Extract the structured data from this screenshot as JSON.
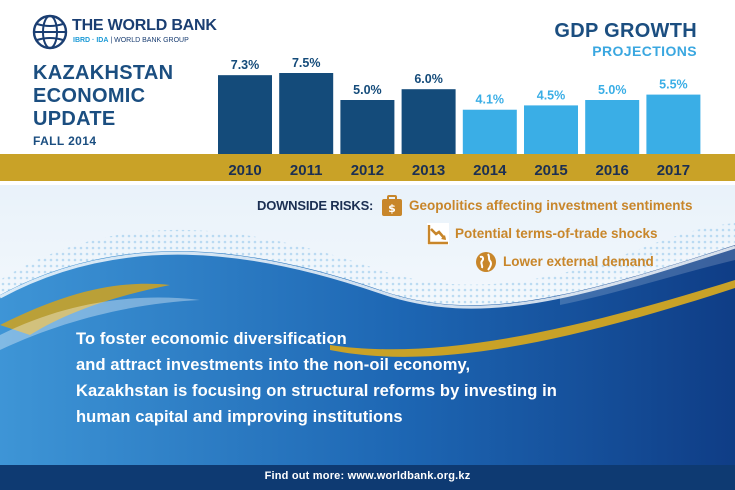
{
  "logo": {
    "name": "THE WORLD BANK",
    "sub_a": "IBRD · IDA",
    "sub_b": "| WORLD BANK GROUP"
  },
  "report": {
    "title_lines": [
      "KAZAKHSTAN",
      "ECONOMIC",
      "UPDATE"
    ],
    "edition": "FALL 2014"
  },
  "chart_data": {
    "type": "bar",
    "title": "GDP GROWTH",
    "subtitle": "PROJECTIONS",
    "categories": [
      "2010",
      "2011",
      "2012",
      "2013",
      "2014",
      "2015",
      "2016",
      "2017"
    ],
    "values": [
      7.3,
      7.5,
      5.0,
      6.0,
      4.1,
      4.5,
      5.0,
      5.5
    ],
    "value_labels": [
      "7.3%",
      "7.5%",
      "5.0%",
      "6.0%",
      "4.1%",
      "4.5%",
      "5.0%",
      "5.5%"
    ],
    "projected": [
      false,
      false,
      false,
      false,
      true,
      true,
      true,
      true
    ],
    "colors": {
      "actual": "#144b7a",
      "projection": "#3aaee6",
      "axis_band": "#c9a227"
    },
    "grid": false,
    "xlabel": "",
    "ylabel": ""
  },
  "risks": {
    "label": "DOWNSIDE RISKS:",
    "items": [
      {
        "text": "Geopolitics affecting investment sentiments",
        "icon": "money-bag-icon"
      },
      {
        "text": "Potential terms-of-trade shocks",
        "icon": "declining-chart-icon"
      },
      {
        "text": "Lower external demand",
        "icon": "globe-icon"
      }
    ]
  },
  "body": {
    "lines": [
      "To foster economic diversification",
      "and attract investments into the non-oil economy,",
      "Kazakhstan is focusing on structural reforms by investing in",
      "human capital and improving institutions"
    ]
  },
  "footer": {
    "text": "Find out more: www.worldbank.org.kz"
  },
  "colors": {
    "navy": "#1b4e80",
    "light_blue": "#3aa7e0",
    "gold": "#c9a227",
    "risk_text": "#c8862a",
    "footer_bg": "#0e3a72"
  }
}
